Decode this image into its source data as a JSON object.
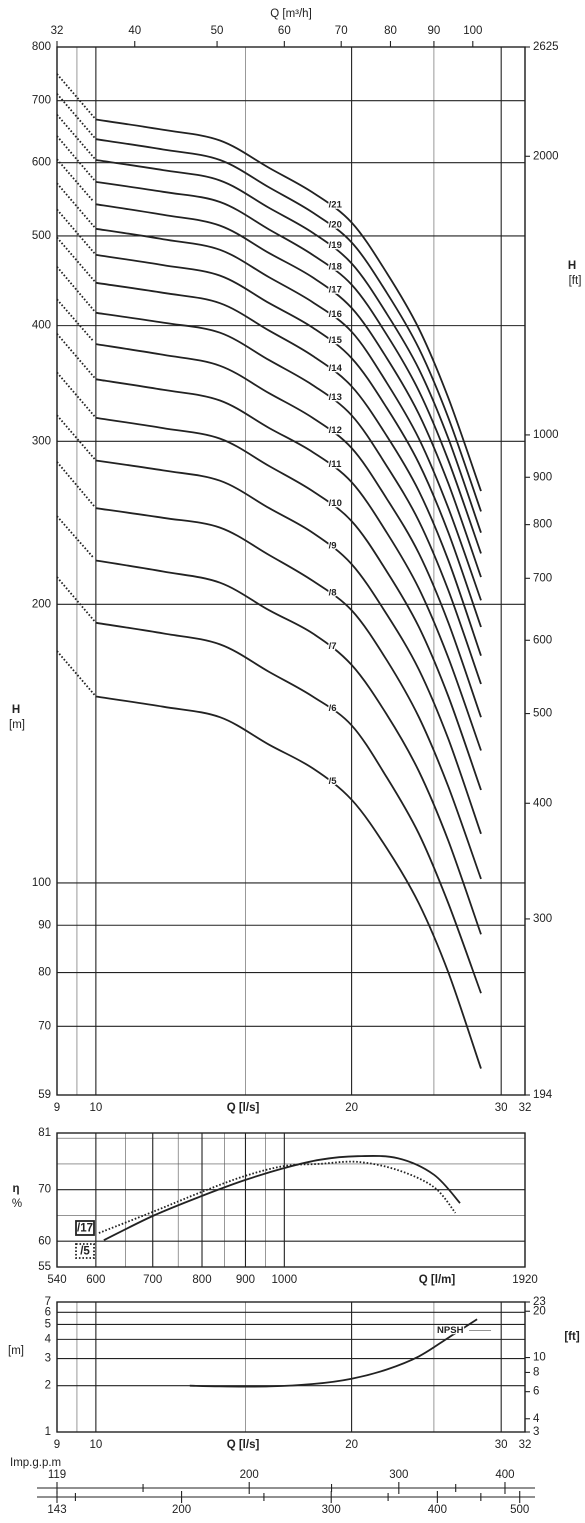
{
  "chart_data": [
    {
      "type": "line",
      "log_x": true,
      "log_y": true,
      "lead_in": "dotted",
      "xlabel": "Q [l/s]",
      "x2label": "Q [m³/h]",
      "ylabel": "H",
      "yunit": "[m]",
      "y2label": "H",
      "y2unit": "[ft]",
      "xlim": [
        9,
        32
      ],
      "xticks": [
        9,
        10,
        20,
        30,
        32
      ],
      "xminor": [
        9.5,
        15,
        25
      ],
      "x2lim": [
        32.4,
        115.2
      ],
      "x2ticks": [
        {
          "value": 32.4,
          "label": "32"
        },
        40,
        50,
        60,
        70,
        80,
        90,
        100
      ],
      "ylim": [
        59,
        800
      ],
      "yticks": [
        59,
        70,
        80,
        90,
        100,
        200,
        300,
        400,
        500,
        600,
        700,
        800
      ],
      "y2lim": [
        193.6,
        2624.7
      ],
      "y2ticks": [
        {
          "value": 193.6,
          "label": "194"
        },
        300,
        400,
        500,
        600,
        700,
        800,
        900,
        1000,
        2000,
        {
          "value": 2624.7,
          "label": "2625"
        }
      ],
      "x": [
        9,
        10,
        12,
        14,
        16,
        18,
        20,
        22,
        24,
        26,
        28.4
      ],
      "series": [
        {
          "name": "/5",
          "color": "#222222",
          "values": [
            178,
            159,
            155,
            151,
            141,
            133,
            123,
            109,
            95,
            80,
            63
          ]
        },
        {
          "name": "/6",
          "color": "#222222",
          "values": [
            214,
            191,
            186,
            181,
            169,
            159,
            148,
            130,
            113,
            95,
            76
          ]
        },
        {
          "name": "/7",
          "color": "#222222",
          "values": [
            249,
            223,
            217,
            211,
            197,
            186,
            172,
            152,
            132,
            111,
            88
          ]
        },
        {
          "name": "/8",
          "color": "#222222",
          "values": [
            285,
            254,
            248,
            242,
            226,
            212,
            197,
            174,
            151,
            127,
            101
          ]
        },
        {
          "name": "/9",
          "color": "#222222",
          "values": [
            320,
            286,
            279,
            272,
            254,
            239,
            221,
            195,
            170,
            143,
            113
          ]
        },
        {
          "name": "/10",
          "color": "#222222",
          "values": [
            356,
            318,
            310,
            302,
            282,
            265,
            246,
            217,
            189,
            159,
            126
          ]
        },
        {
          "name": "/11",
          "color": "#222222",
          "values": [
            392,
            350,
            341,
            332,
            310,
            292,
            271,
            239,
            208,
            175,
            139
          ]
        },
        {
          "name": "/12",
          "color": "#222222",
          "values": [
            427,
            382,
            372,
            362,
            338,
            318,
            295,
            260,
            227,
            191,
            151
          ]
        },
        {
          "name": "/13",
          "color": "#222222",
          "values": [
            463,
            413,
            403,
            393,
            367,
            345,
            320,
            282,
            246,
            207,
            164
          ]
        },
        {
          "name": "/14",
          "color": "#222222",
          "values": [
            498,
            445,
            434,
            423,
            395,
            371,
            344,
            304,
            265,
            223,
            176
          ]
        },
        {
          "name": "/15",
          "color": "#222222",
          "values": [
            534,
            477,
            465,
            453,
            423,
            398,
            369,
            326,
            284,
            239,
            189
          ]
        },
        {
          "name": "/16",
          "color": "#222222",
          "values": [
            570,
            509,
            496,
            483,
            451,
            424,
            394,
            347,
            302,
            254,
            202
          ]
        },
        {
          "name": "/17",
          "color": "#222222",
          "values": [
            605,
            541,
            527,
            513,
            479,
            451,
            418,
            369,
            321,
            270,
            214
          ]
        },
        {
          "name": "/18",
          "color": "#222222",
          "values": [
            641,
            572,
            558,
            544,
            508,
            477,
            443,
            391,
            340,
            286,
            227
          ]
        },
        {
          "name": "/19",
          "color": "#222222",
          "values": [
            676,
            604,
            589,
            574,
            536,
            504,
            467,
            412,
            359,
            302,
            239
          ]
        },
        {
          "name": "/20",
          "color": "#222222",
          "values": [
            712,
            636,
            620,
            604,
            564,
            530,
            492,
            434,
            378,
            318,
            252
          ]
        },
        {
          "name": "/21",
          "color": "#222222",
          "values": [
            748,
            668,
            651,
            634,
            592,
            557,
            517,
            456,
            397,
            334,
            265
          ]
        }
      ]
    },
    {
      "type": "line",
      "log_x": true,
      "log_y": false,
      "xlabel": "Q [l/m]",
      "ylabel": "η",
      "yunit": "%",
      "xlim": [
        540,
        1920
      ],
      "xticks": [
        540,
        600,
        700,
        800,
        900,
        1000,
        1920
      ],
      "xminor": [
        650,
        750,
        850,
        950
      ],
      "ylim": [
        55,
        81
      ],
      "yticks": [
        55,
        60,
        70,
        81
      ],
      "yminor": [
        65,
        75,
        80
      ],
      "series": [
        {
          "name": "/17",
          "color": "#222222",
          "style": "solid",
          "x": [
            613,
            700,
            800,
            900,
            1000,
            1100,
            1220,
            1360,
            1500,
            1610
          ],
          "values": [
            60.2,
            64.9,
            68.8,
            71.9,
            74.2,
            75.8,
            76.5,
            76.1,
            72.9,
            67.4
          ]
        },
        {
          "name": "/5",
          "color": "#222222",
          "style": "dotted",
          "x": [
            605,
            700,
            800,
            900,
            1000,
            1100,
            1220,
            1360,
            1500,
            1590
          ],
          "values": [
            61.6,
            65.7,
            69.6,
            72.7,
            74.6,
            75.0,
            75.4,
            73.8,
            70.5,
            65.5
          ]
        }
      ]
    },
    {
      "type": "line",
      "log_x": true,
      "log_y": true,
      "xlabel": "Q [l/s]",
      "ylabel": "[m]",
      "y2label": "[ft]",
      "xlim": [
        9,
        32
      ],
      "xticks": [
        9,
        10,
        20,
        30,
        32
      ],
      "xminor": [
        9.5,
        15,
        25
      ],
      "ylim": [
        1,
        7
      ],
      "yticks": [
        1,
        2,
        3,
        4,
        5,
        6,
        7
      ],
      "y2lim": [
        3.281,
        22.97
      ],
      "y2ticks": [
        {
          "value": 3.281,
          "label": "3"
        },
        4,
        6,
        8,
        10,
        20,
        {
          "value": 22.97,
          "label": "23"
        }
      ],
      "series": [
        {
          "name": "NPSH",
          "color": "#222222",
          "x": [
            12.9,
            14,
            16,
            18,
            20,
            22,
            24,
            26,
            28.1
          ],
          "values": [
            2.0,
            1.98,
            1.98,
            2.05,
            2.22,
            2.55,
            3.1,
            4.1,
            5.4
          ]
        }
      ]
    },
    {
      "type": "axis",
      "label": "Imp.g.p.m",
      "xlim": [
        118.8,
        422.3
      ],
      "xticks": [
        {
          "value": 118.8,
          "label": "119"
        },
        200,
        300,
        400
      ],
      "xminor": [
        150,
        250,
        350
      ]
    },
    {
      "type": "axis",
      "xlim": [
        142.7,
        507.2
      ],
      "xticks": [
        {
          "value": 142.7,
          "label": "143"
        },
        200,
        300,
        400,
        500
      ],
      "xminor": [
        150,
        250,
        350,
        450
      ]
    }
  ]
}
